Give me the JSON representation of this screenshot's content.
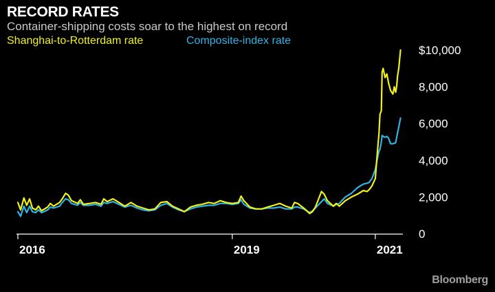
{
  "header": {
    "title": "RECORD RATES",
    "subtitle": "Container-shipping costs soar to the highest on record",
    "brand": "Bloomberg"
  },
  "chart_data": {
    "type": "line",
    "title": "RECORD RATES",
    "subtitle": "Container-shipping costs soar to the highest on record",
    "xlabel": "",
    "ylabel": "",
    "xlim": [
      "2016-01-01",
      "2021-05-15"
    ],
    "ylim": [
      0,
      10000
    ],
    "grid": false,
    "legend_position": "top-left",
    "y_ticks": [
      {
        "value": 0,
        "label": "0"
      },
      {
        "value": 2000,
        "label": "2,000"
      },
      {
        "value": 4000,
        "label": "4,000"
      },
      {
        "value": 6000,
        "label": "6,000"
      },
      {
        "value": 8000,
        "label": "8,000"
      },
      {
        "value": 10000,
        "label": "$10,000"
      }
    ],
    "x_ticks": [
      {
        "value": "2016-01-01",
        "label": "2016"
      },
      {
        "value": "2019-01-01",
        "label": "2019"
      },
      {
        "value": "2021-01-01",
        "label": "2021"
      }
    ],
    "series": [
      {
        "name": "Shanghai-to-Rotterdam rate",
        "color": "#f2f21a",
        "points": [
          [
            "2016-01-01",
            1700
          ],
          [
            "2016-01-15",
            1300
          ],
          [
            "2016-02-01",
            1950
          ],
          [
            "2016-02-15",
            1550
          ],
          [
            "2016-03-01",
            1900
          ],
          [
            "2016-03-15",
            1400
          ],
          [
            "2016-04-01",
            1300
          ],
          [
            "2016-04-15",
            1500
          ],
          [
            "2016-05-01",
            1250
          ],
          [
            "2016-06-01",
            1450
          ],
          [
            "2016-06-15",
            1650
          ],
          [
            "2016-07-01",
            1500
          ],
          [
            "2016-08-01",
            1700
          ],
          [
            "2016-08-15",
            1900
          ],
          [
            "2016-09-01",
            2200
          ],
          [
            "2016-09-15",
            2100
          ],
          [
            "2016-10-01",
            1800
          ],
          [
            "2016-11-01",
            1650
          ],
          [
            "2016-11-15",
            1850
          ],
          [
            "2016-12-01",
            1600
          ],
          [
            "2017-01-01",
            1650
          ],
          [
            "2017-02-01",
            1700
          ],
          [
            "2017-03-01",
            1600
          ],
          [
            "2017-03-15",
            1900
          ],
          [
            "2017-04-01",
            1750
          ],
          [
            "2017-05-01",
            1900
          ],
          [
            "2017-06-01",
            1700
          ],
          [
            "2017-07-01",
            1500
          ],
          [
            "2017-08-01",
            1700
          ],
          [
            "2017-09-01",
            1500
          ],
          [
            "2017-10-01",
            1400
          ],
          [
            "2017-11-01",
            1300
          ],
          [
            "2017-12-01",
            1350
          ],
          [
            "2018-01-01",
            1700
          ],
          [
            "2018-02-01",
            1750
          ],
          [
            "2018-03-01",
            1500
          ],
          [
            "2018-04-01",
            1350
          ],
          [
            "2018-05-01",
            1200
          ],
          [
            "2018-06-01",
            1450
          ],
          [
            "2018-07-01",
            1550
          ],
          [
            "2018-08-01",
            1600
          ],
          [
            "2018-09-01",
            1700
          ],
          [
            "2018-10-01",
            1650
          ],
          [
            "2018-11-01",
            1800
          ],
          [
            "2018-12-01",
            1700
          ],
          [
            "2019-01-01",
            1650
          ],
          [
            "2019-02-01",
            1700
          ],
          [
            "2019-02-15",
            2050
          ],
          [
            "2019-03-01",
            1800
          ],
          [
            "2019-04-01",
            1450
          ],
          [
            "2019-05-01",
            1350
          ],
          [
            "2019-06-01",
            1350
          ],
          [
            "2019-07-01",
            1450
          ],
          [
            "2019-08-01",
            1550
          ],
          [
            "2019-09-01",
            1650
          ],
          [
            "2019-10-01",
            1500
          ],
          [
            "2019-11-01",
            1400
          ],
          [
            "2019-11-15",
            1700
          ],
          [
            "2019-12-01",
            1650
          ],
          [
            "2020-01-01",
            1400
          ],
          [
            "2020-02-01",
            1100
          ],
          [
            "2020-02-15",
            1200
          ],
          [
            "2020-03-01",
            1450
          ],
          [
            "2020-04-01",
            2300
          ],
          [
            "2020-04-15",
            2150
          ],
          [
            "2020-05-01",
            1800
          ],
          [
            "2020-06-01",
            1500
          ],
          [
            "2020-06-15",
            1650
          ],
          [
            "2020-07-01",
            1500
          ],
          [
            "2020-08-01",
            1800
          ],
          [
            "2020-09-01",
            2000
          ],
          [
            "2020-10-01",
            2150
          ],
          [
            "2020-11-01",
            2350
          ],
          [
            "2020-11-20",
            2300
          ],
          [
            "2020-12-01",
            2400
          ],
          [
            "2020-12-15",
            2600
          ],
          [
            "2021-01-01",
            3000
          ],
          [
            "2021-01-10",
            4200
          ],
          [
            "2021-01-20",
            5500
          ],
          [
            "2021-01-25",
            6500
          ],
          [
            "2021-02-01",
            6700
          ],
          [
            "2021-02-05",
            8800
          ],
          [
            "2021-02-10",
            9000
          ],
          [
            "2021-02-20",
            8500
          ],
          [
            "2021-03-01",
            8700
          ],
          [
            "2021-03-10",
            8200
          ],
          [
            "2021-03-20",
            7800
          ],
          [
            "2021-04-01",
            7600
          ],
          [
            "2021-04-08",
            8000
          ],
          [
            "2021-04-15",
            7700
          ],
          [
            "2021-04-20",
            8000
          ],
          [
            "2021-04-25",
            8600
          ],
          [
            "2021-05-01",
            9000
          ],
          [
            "2021-05-10",
            10000
          ]
        ]
      },
      {
        "name": "Composite-index rate",
        "color": "#2eb5e6",
        "points": [
          [
            "2016-01-01",
            1200
          ],
          [
            "2016-01-15",
            950
          ],
          [
            "2016-02-01",
            1500
          ],
          [
            "2016-02-15",
            1150
          ],
          [
            "2016-03-01",
            1500
          ],
          [
            "2016-03-15",
            1200
          ],
          [
            "2016-04-01",
            1150
          ],
          [
            "2016-04-15",
            1300
          ],
          [
            "2016-05-01",
            1150
          ],
          [
            "2016-06-01",
            1300
          ],
          [
            "2016-06-15",
            1450
          ],
          [
            "2016-07-01",
            1400
          ],
          [
            "2016-08-01",
            1500
          ],
          [
            "2016-08-15",
            1700
          ],
          [
            "2016-09-01",
            1900
          ],
          [
            "2016-09-15",
            1850
          ],
          [
            "2016-10-01",
            1650
          ],
          [
            "2016-11-01",
            1550
          ],
          [
            "2016-11-15",
            1700
          ],
          [
            "2016-12-01",
            1550
          ],
          [
            "2017-01-01",
            1550
          ],
          [
            "2017-02-01",
            1600
          ],
          [
            "2017-03-01",
            1500
          ],
          [
            "2017-03-15",
            1700
          ],
          [
            "2017-04-01",
            1650
          ],
          [
            "2017-05-01",
            1750
          ],
          [
            "2017-06-01",
            1600
          ],
          [
            "2017-07-01",
            1450
          ],
          [
            "2017-08-01",
            1550
          ],
          [
            "2017-09-01",
            1400
          ],
          [
            "2017-10-01",
            1300
          ],
          [
            "2017-11-01",
            1250
          ],
          [
            "2017-12-01",
            1300
          ],
          [
            "2018-01-01",
            1550
          ],
          [
            "2018-02-01",
            1650
          ],
          [
            "2018-03-01",
            1450
          ],
          [
            "2018-04-01",
            1300
          ],
          [
            "2018-05-01",
            1200
          ],
          [
            "2018-06-01",
            1350
          ],
          [
            "2018-07-01",
            1450
          ],
          [
            "2018-08-01",
            1500
          ],
          [
            "2018-09-01",
            1550
          ],
          [
            "2018-10-01",
            1550
          ],
          [
            "2018-11-01",
            1650
          ],
          [
            "2018-12-01",
            1650
          ],
          [
            "2019-01-01",
            1600
          ],
          [
            "2019-02-01",
            1650
          ],
          [
            "2019-02-15",
            1850
          ],
          [
            "2019-03-01",
            1600
          ],
          [
            "2019-04-01",
            1400
          ],
          [
            "2019-05-01",
            1350
          ],
          [
            "2019-06-01",
            1350
          ],
          [
            "2019-07-01",
            1400
          ],
          [
            "2019-08-01",
            1400
          ],
          [
            "2019-09-01",
            1450
          ],
          [
            "2019-10-01",
            1350
          ],
          [
            "2019-11-01",
            1350
          ],
          [
            "2019-11-15",
            1450
          ],
          [
            "2019-12-01",
            1450
          ],
          [
            "2020-01-01",
            1350
          ],
          [
            "2020-02-01",
            1150
          ],
          [
            "2020-02-15",
            1250
          ],
          [
            "2020-03-01",
            1400
          ],
          [
            "2020-04-01",
            1750
          ],
          [
            "2020-04-15",
            1900
          ],
          [
            "2020-05-01",
            1650
          ],
          [
            "2020-06-01",
            1500
          ],
          [
            "2020-06-15",
            1600
          ],
          [
            "2020-07-01",
            1650
          ],
          [
            "2020-08-01",
            2000
          ],
          [
            "2020-09-01",
            2200
          ],
          [
            "2020-10-01",
            2500
          ],
          [
            "2020-11-01",
            2700
          ],
          [
            "2020-11-20",
            2750
          ],
          [
            "2020-12-01",
            2800
          ],
          [
            "2020-12-15",
            3000
          ],
          [
            "2021-01-01",
            3500
          ],
          [
            "2021-01-10",
            4000
          ],
          [
            "2021-01-20",
            4500
          ],
          [
            "2021-01-25",
            4600
          ],
          [
            "2021-02-01",
            5000
          ],
          [
            "2021-02-05",
            5350
          ],
          [
            "2021-02-10",
            5300
          ],
          [
            "2021-02-20",
            5250
          ],
          [
            "2021-03-01",
            5300
          ],
          [
            "2021-03-10",
            5200
          ],
          [
            "2021-03-20",
            4900
          ],
          [
            "2021-04-01",
            4900
          ],
          [
            "2021-04-15",
            4950
          ],
          [
            "2021-04-25",
            5500
          ],
          [
            "2021-05-01",
            5800
          ],
          [
            "2021-05-10",
            6300
          ]
        ]
      }
    ]
  }
}
